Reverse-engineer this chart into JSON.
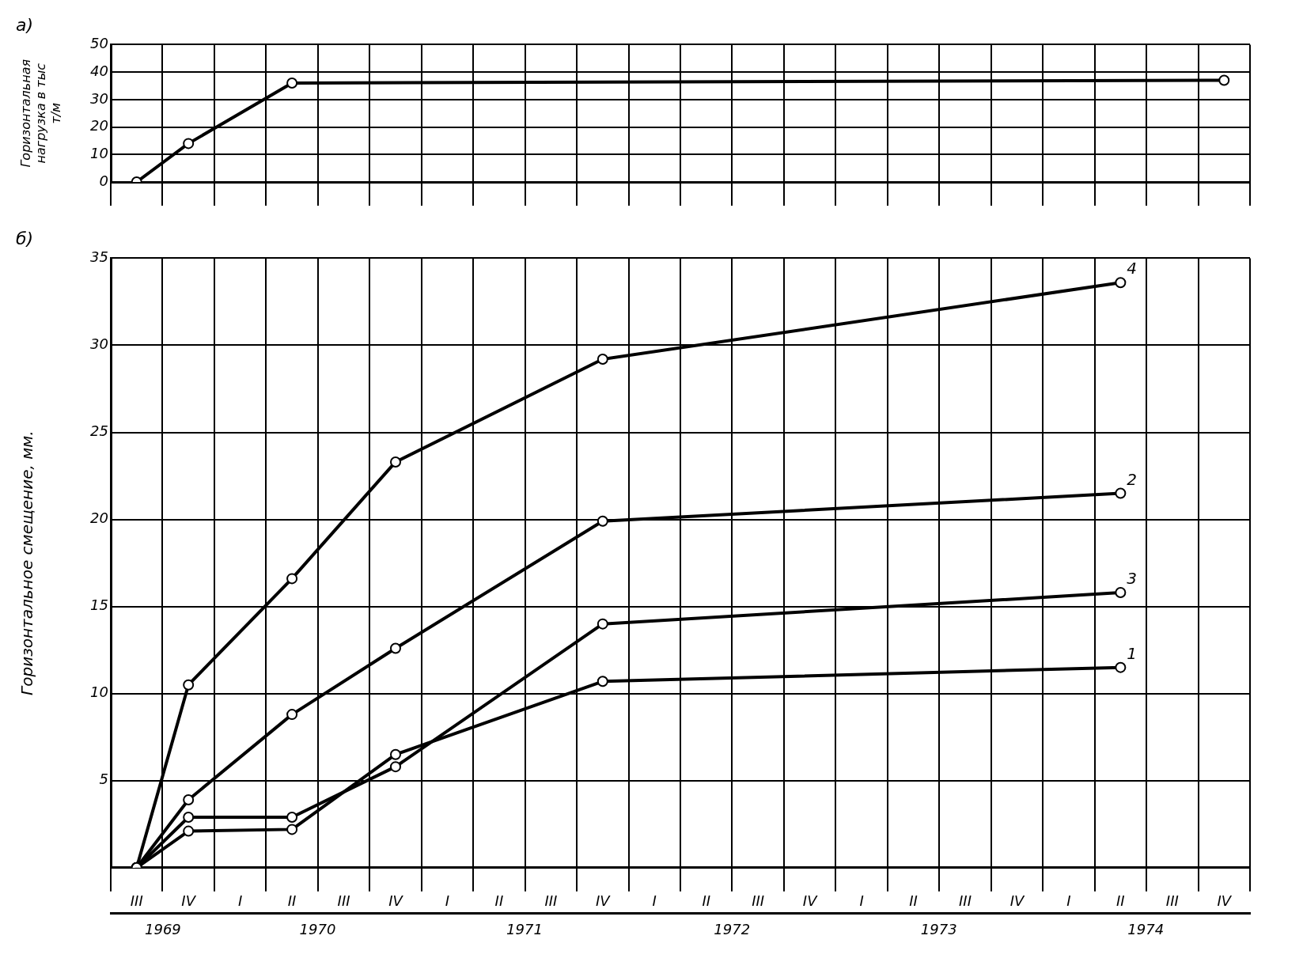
{
  "chart_data": [
    {
      "type": "line",
      "title": "а)",
      "ylabel": "Горизонтальная нагрузка в тыс т/м",
      "marker": "circle",
      "grid": true,
      "tick_labels": "y",
      "categories": [
        null,
        null,
        null,
        null,
        null,
        null,
        null,
        null,
        null,
        null,
        null,
        null,
        null,
        null,
        null,
        null,
        null,
        null,
        null,
        null,
        null,
        null
      ],
      "ylim": [
        0,
        50
      ],
      "yticks": [
        0,
        10,
        20,
        30,
        40,
        50
      ],
      "series": [
        {
          "color": "#000000",
          "values": [
            0,
            14,
            null,
            36,
            null,
            null,
            null,
            null,
            null,
            null,
            null,
            null,
            null,
            null,
            null,
            null,
            null,
            null,
            null,
            null,
            null,
            37
          ]
        }
      ]
    },
    {
      "type": "line",
      "title": "б)",
      "ylabel": "Горизонтальное смещение, мм.",
      "marker": "circle",
      "grid": true,
      "categories": [
        "III",
        "IV",
        "I",
        "II",
        "III",
        "IV",
        "I",
        "II",
        "III",
        "IV",
        "I",
        "II",
        "III",
        "IV",
        "I",
        "II",
        "III",
        "IV",
        "I",
        "II",
        "III",
        "IV"
      ],
      "x2lim": [
        "1969-07-01",
        "1975-01-01"
      ],
      "x2ticks": [
        {
          "value": "1969-10-01",
          "label": "1969"
        },
        {
          "value": "1970-07-01",
          "label": "1970"
        },
        {
          "value": "1971-07-01",
          "label": "1971"
        },
        {
          "value": "1972-07-01",
          "label": "1972"
        },
        {
          "value": "1973-07-01",
          "label": "1973"
        },
        {
          "value": "1974-07-01",
          "label": "1974"
        }
      ],
      "ylim": [
        0,
        35
      ],
      "yticks": [
        {
          "value": 0,
          "label": null
        },
        5,
        10,
        15,
        20,
        25,
        30,
        35
      ],
      "series": [
        {
          "name": "1",
          "color": "#000000",
          "values": [
            0,
            2.1,
            null,
            2.2,
            null,
            6.5,
            null,
            null,
            null,
            10.7,
            null,
            null,
            null,
            null,
            null,
            null,
            null,
            null,
            null,
            11.5,
            null,
            null
          ]
        },
        {
          "name": "2",
          "color": "#000000",
          "values": [
            0,
            3.9,
            null,
            8.8,
            null,
            12.6,
            null,
            null,
            null,
            19.9,
            null,
            null,
            null,
            null,
            null,
            null,
            null,
            null,
            null,
            21.5,
            null,
            null
          ]
        },
        {
          "name": "3",
          "color": "#000000",
          "values": [
            0,
            2.9,
            null,
            2.9,
            null,
            5.8,
            null,
            null,
            null,
            14.0,
            null,
            null,
            null,
            null,
            null,
            null,
            null,
            null,
            null,
            15.8,
            null,
            null
          ]
        },
        {
          "name": "4",
          "color": "#000000",
          "values": [
            0,
            10.5,
            null,
            16.6,
            null,
            23.3,
            null,
            null,
            null,
            29.2,
            null,
            null,
            null,
            null,
            null,
            null,
            null,
            null,
            null,
            33.6,
            null,
            null
          ]
        }
      ]
    }
  ]
}
